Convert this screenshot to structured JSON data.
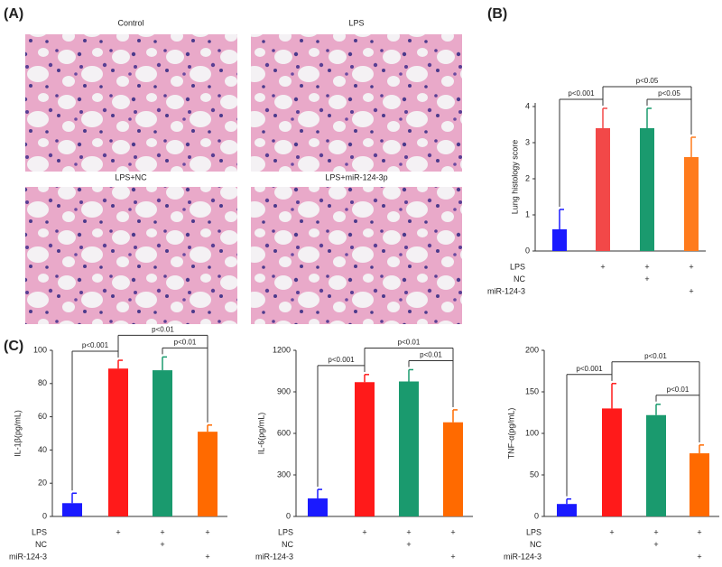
{
  "panel_labels": [
    "(A)",
    "(B)",
    "(C)"
  ],
  "images": [
    "Control",
    "LPS",
    "LPS+NC",
    "LPS+miR-124-3p"
  ],
  "chart_data": [
    {
      "type": "bar",
      "ylabel": "Lung histology score",
      "categories": [
        null,
        null,
        null,
        null
      ],
      "values": [
        0.6,
        3.4,
        3.4,
        2.6
      ],
      "errors": [
        0.55,
        0.55,
        0.55,
        0.55
      ],
      "colors": [
        "#1a1aff",
        "#f24848",
        "#1a9a6e",
        "#ff7b1c"
      ],
      "ylim": [
        0,
        4.1
      ],
      "yticks": [
        0,
        1,
        2,
        3,
        4
      ],
      "significance": [
        {
          "pair": [
            0,
            1
          ],
          "label": "p<0.001"
        },
        {
          "pair": [
            1,
            3
          ],
          "label": "p<0.05"
        },
        {
          "pair": [
            2,
            3
          ],
          "label": "p<0.05"
        }
      ],
      "treatments": [
        {
          "name": "LPS",
          "marks": [
            null,
            "+",
            "+",
            "+"
          ]
        },
        {
          "name": "NC",
          "marks": [
            null,
            null,
            "+",
            null
          ]
        },
        {
          "name": "miR-124-3",
          "marks": [
            null,
            null,
            null,
            "+"
          ]
        }
      ]
    },
    {
      "type": "bar",
      "ylabel": "IL-1β(pg/mL)",
      "categories": [
        null,
        null,
        null,
        null
      ],
      "values": [
        8,
        89,
        88,
        51
      ],
      "errors": [
        6,
        5,
        8,
        4
      ],
      "colors": [
        "#1a1aff",
        "#ff1a1a",
        "#1a9a6e",
        "#ff6a00"
      ],
      "ylim": [
        0,
        100
      ],
      "yticks": [
        0,
        20,
        40,
        60,
        80,
        100
      ],
      "significance": [
        {
          "pair": [
            0,
            1
          ],
          "label": "p<0.001"
        },
        {
          "pair": [
            1,
            3
          ],
          "label": "p<0.01"
        },
        {
          "pair": [
            2,
            3
          ],
          "label": "p<0.01"
        }
      ],
      "treatments": [
        {
          "name": "LPS",
          "marks": [
            null,
            "+",
            "+",
            "+"
          ]
        },
        {
          "name": "NC",
          "marks": [
            null,
            null,
            "+",
            null
          ]
        },
        {
          "name": "miR-124-3",
          "marks": [
            null,
            null,
            null,
            "+"
          ]
        }
      ]
    },
    {
      "type": "bar",
      "ylabel": "IL-6(pg/mL)",
      "categories": [
        null,
        null,
        null,
        null
      ],
      "values": [
        130,
        970,
        975,
        680
      ],
      "errors": [
        65,
        55,
        85,
        90
      ],
      "colors": [
        "#1a1aff",
        "#ff1a1a",
        "#1a9a6e",
        "#ff6a00"
      ],
      "ylim": [
        0,
        1200
      ],
      "yticks": [
        0,
        300,
        600,
        900,
        1200
      ],
      "significance": [
        {
          "pair": [
            0,
            1
          ],
          "label": "p<0.001"
        },
        {
          "pair": [
            1,
            3
          ],
          "label": "p<0.01"
        },
        {
          "pair": [
            2,
            3
          ],
          "label": "p<0.01"
        }
      ],
      "treatments": [
        {
          "name": "LPS",
          "marks": [
            null,
            "+",
            "+",
            "+"
          ]
        },
        {
          "name": "NC",
          "marks": [
            null,
            null,
            "+",
            null
          ]
        },
        {
          "name": "miR-124-3",
          "marks": [
            null,
            null,
            null,
            "+"
          ]
        }
      ]
    },
    {
      "type": "bar",
      "ylabel": "TNF-α(pg/mL)",
      "categories": [
        null,
        null,
        null,
        null
      ],
      "values": [
        15,
        130,
        122,
        76
      ],
      "errors": [
        6,
        30,
        13,
        10
      ],
      "colors": [
        "#1a1aff",
        "#ff1a1a",
        "#1a9a6e",
        "#ff6a00"
      ],
      "ylim": [
        0,
        200
      ],
      "yticks": [
        0,
        50,
        100,
        150,
        200
      ],
      "significance": [
        {
          "pair": [
            0,
            1
          ],
          "label": "p<0.001"
        },
        {
          "pair": [
            1,
            3
          ],
          "label": "p<0.01"
        },
        {
          "pair": [
            2,
            3
          ],
          "label": "p<0.01"
        }
      ],
      "treatments": [
        {
          "name": "LPS",
          "marks": [
            null,
            "+",
            "+",
            "+"
          ]
        },
        {
          "name": "NC",
          "marks": [
            null,
            null,
            "+",
            null
          ]
        },
        {
          "name": "miR-124-3",
          "marks": [
            null,
            null,
            null,
            "+"
          ]
        }
      ]
    }
  ]
}
